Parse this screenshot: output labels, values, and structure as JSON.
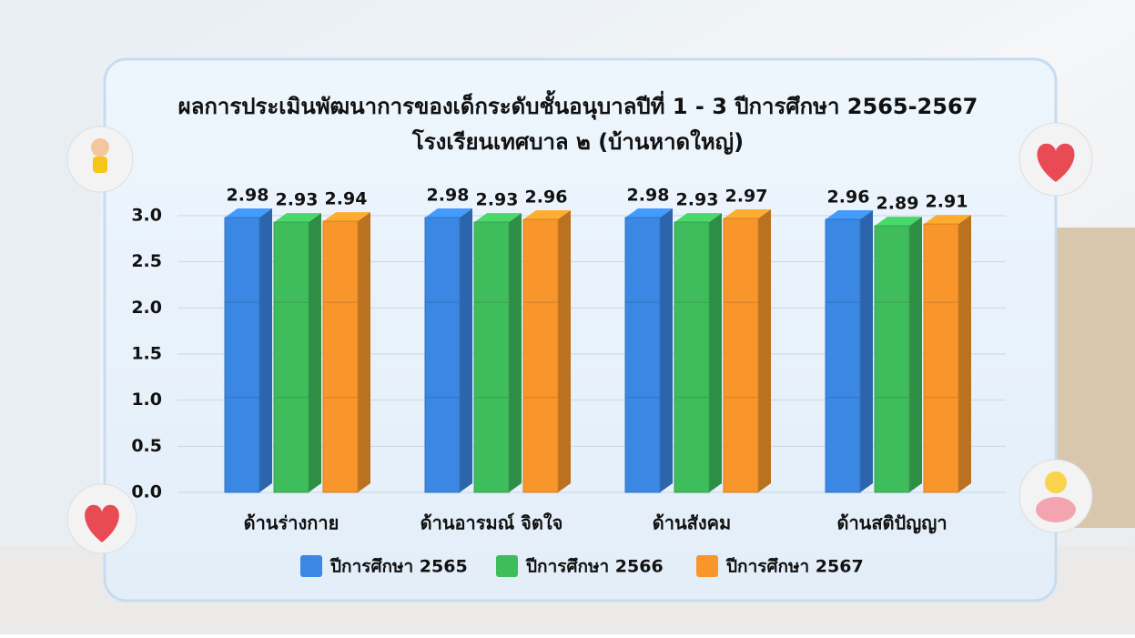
{
  "chart_data": {
    "type": "bar3d",
    "title": "ผลการประเมินพัฒนาการของเด็กระดับชั้นอนุบาลปีที่ 1 - 3 ปีการศึกษา 2565-2567",
    "subtitle": "โรงเรียนเทศบาล ๒ (บ้านหาดใหญ่)",
    "categories": [
      "ด้านร่างกาย",
      "ด้านอารมณ์ จิตใจ",
      "ด้านสังคม",
      "ด้านสติปัญญา"
    ],
    "series": [
      {
        "name": "ปีการศึกษา 2565",
        "color": "#3b87e4",
        "values": [
          2.98,
          2.98,
          2.98,
          2.96
        ]
      },
      {
        "name": "ปีการศึกษา 2566",
        "color": "#3fbd5c",
        "values": [
          2.93,
          2.93,
          2.93,
          2.89
        ]
      },
      {
        "name": "ปีการศึกษา 2567",
        "color": "#f8962b",
        "values": [
          2.94,
          2.96,
          2.97,
          2.91
        ]
      }
    ],
    "ylim": [
      0,
      3
    ],
    "yticks": [
      {
        "value": 0,
        "label": "0.0"
      },
      0.5,
      {
        "value": 1,
        "label": "1.0"
      },
      1.5,
      {
        "value": 2,
        "label": "2.0"
      },
      2.5,
      {
        "value": 3,
        "label": "3.0"
      }
    ],
    "grid": true,
    "legend": "bottom"
  }
}
